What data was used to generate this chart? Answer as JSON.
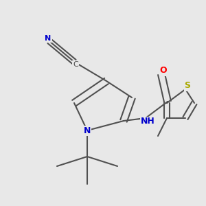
{
  "bg_color": "#e8e8e8",
  "bond_color": "#505050",
  "N_color": "#0000cc",
  "O_color": "#ff0000",
  "S_color": "#aaaa00",
  "line_width": 1.5,
  "fig_width": 3.0,
  "fig_height": 3.0,
  "dpi": 100,
  "xlim": [
    0,
    300
  ],
  "ylim": [
    0,
    300
  ]
}
